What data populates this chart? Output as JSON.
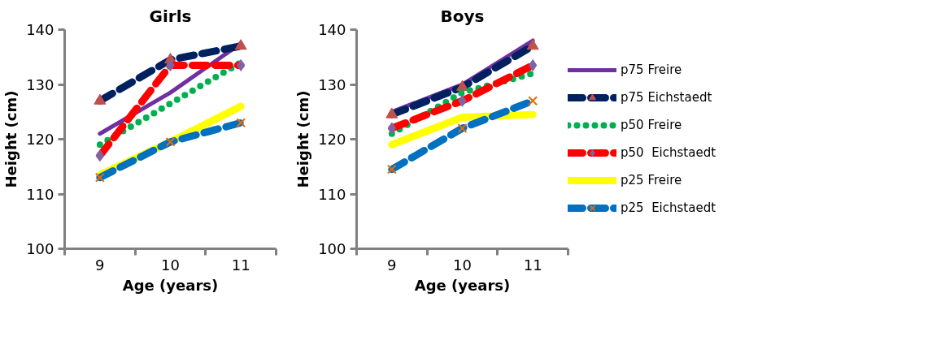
{
  "chart_data": [
    {
      "type": "line",
      "title": "Girls",
      "xlabel": "Age (years)",
      "ylabel": "Height (cm)",
      "categories": [
        "9",
        "10",
        "11"
      ],
      "ylim": [
        100,
        140
      ],
      "yticks": [
        100,
        110,
        120,
        130,
        140
      ],
      "grid": false,
      "legend": false,
      "series": [
        {
          "color": "#7030a0",
          "line_style": "solid",
          "marker": "none",
          "values": [
            121,
            128.5,
            137.5
          ]
        },
        {
          "color": "#002060",
          "line_style": "dashed",
          "marker": "triangle",
          "colors": [
            "#c0504d",
            "#c0504d",
            "#c0504d"
          ],
          "values": [
            127,
            134.5,
            137
          ]
        },
        {
          "color": "#00b050",
          "line_style": "dotted",
          "marker": "none",
          "values": [
            119,
            126.5,
            134
          ]
        },
        {
          "color": "#ff0000",
          "line_style": "dashed",
          "marker": "diamond",
          "colors": [
            "#8064a2",
            "#8064a2",
            "#8064a2"
          ],
          "values": [
            117,
            133.5,
            133.5
          ]
        },
        {
          "color": "#ffff00",
          "line_style": "solid",
          "marker": "none",
          "values": [
            113.5,
            119.5,
            126
          ]
        },
        {
          "color": "#0070c0",
          "line_style": "dashed",
          "marker": "cross",
          "colors": [
            "#e46c0a",
            "#e46c0a",
            "#e46c0a"
          ],
          "values": [
            113,
            119.5,
            123
          ]
        }
      ]
    },
    {
      "type": "line",
      "title": "Boys",
      "xlabel": "Age (years)",
      "ylabel": "Height (cm)",
      "categories": [
        "9",
        "10",
        "11"
      ],
      "ylim": [
        100,
        140
      ],
      "yticks": [
        100,
        110,
        120,
        130,
        140
      ],
      "grid": false,
      "legend": "right",
      "series": [
        {
          "name": "p75 Freire",
          "color": "#7030a0",
          "line_style": "solid",
          "marker": "none",
          "values": [
            125,
            130,
            138
          ]
        },
        {
          "name": "p75 Eichstaedt",
          "color": "#002060",
          "line_style": "dashed",
          "marker": "triangle",
          "colors": [
            "#c0504d",
            "#c0504d",
            "#c0504d"
          ],
          "values": [
            124.5,
            129.5,
            137
          ]
        },
        {
          "name": "p50 Freire",
          "color": "#00b050",
          "line_style": "dotted",
          "marker": "none",
          "values": [
            121,
            128.5,
            132
          ]
        },
        {
          "name": "p50  Eichstaedt",
          "color": "#ff0000",
          "line_style": "dashed",
          "marker": "diamond",
          "colors": [
            "#8064a2",
            "#8064a2",
            "#8064a2"
          ],
          "values": [
            122,
            127,
            133.5
          ]
        },
        {
          "name": "p25 Freire",
          "color": "#ffff00",
          "line_style": "solid",
          "marker": "none",
          "values": [
            119,
            124,
            124.5
          ]
        },
        {
          "name": "p25  Eichstaedt",
          "color": "#0070c0",
          "line_style": "dashed",
          "marker": "cross",
          "colors": [
            "#e46c0a",
            "#e46c0a",
            "#e46c0a"
          ],
          "values": [
            114.5,
            122,
            127
          ]
        }
      ]
    }
  ]
}
